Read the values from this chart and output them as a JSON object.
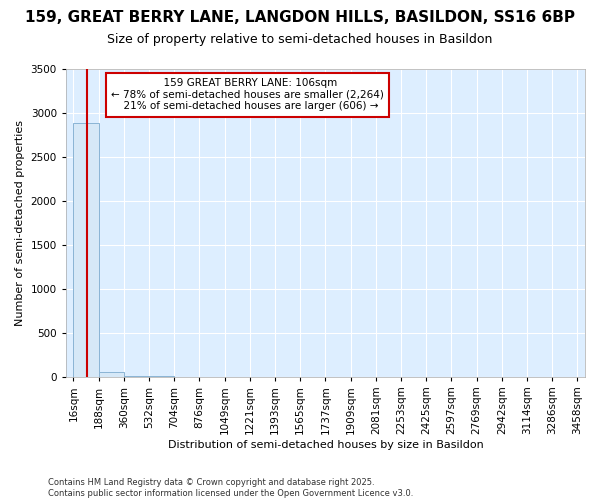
{
  "title": "159, GREAT BERRY LANE, LANGDON HILLS, BASILDON, SS16 6BP",
  "subtitle": "Size of property relative to semi-detached houses in Basildon",
  "xlabel": "Distribution of semi-detached houses by size in Basildon",
  "ylabel": "Number of semi-detached properties",
  "footer": "Contains HM Land Registry data © Crown copyright and database right 2025.\nContains public sector information licensed under the Open Government Licence v3.0.",
  "bin_edges": [
    16,
    188,
    360,
    532,
    704,
    876,
    1049,
    1221,
    1393,
    1565,
    1737,
    1909,
    2081,
    2253,
    2425,
    2597,
    2769,
    2942,
    3114,
    3286,
    3458
  ],
  "bar_heights": [
    2890,
    50,
    5,
    2,
    1,
    1,
    1,
    0,
    0,
    1,
    0,
    0,
    0,
    0,
    0,
    0,
    0,
    0,
    0,
    0
  ],
  "bar_color": "#d6e8f7",
  "bar_edge_color": "#8ab4d4",
  "property_size": 106,
  "property_label": "159 GREAT BERRY LANE: 106sqm",
  "pct_smaller": 78,
  "pct_larger": 21,
  "n_smaller": 2264,
  "n_larger": 606,
  "vline_color": "#cc0000",
  "annotation_box_color": "#cc0000",
  "ylim": [
    0,
    3500
  ],
  "yticks": [
    0,
    500,
    1000,
    1500,
    2000,
    2500,
    3000,
    3500
  ],
  "background_color": "#ddeeff",
  "grid_color": "#ffffff",
  "fig_background": "#ffffff",
  "title_fontsize": 11,
  "subtitle_fontsize": 9,
  "axis_fontsize": 8,
  "tick_fontsize": 7.5
}
